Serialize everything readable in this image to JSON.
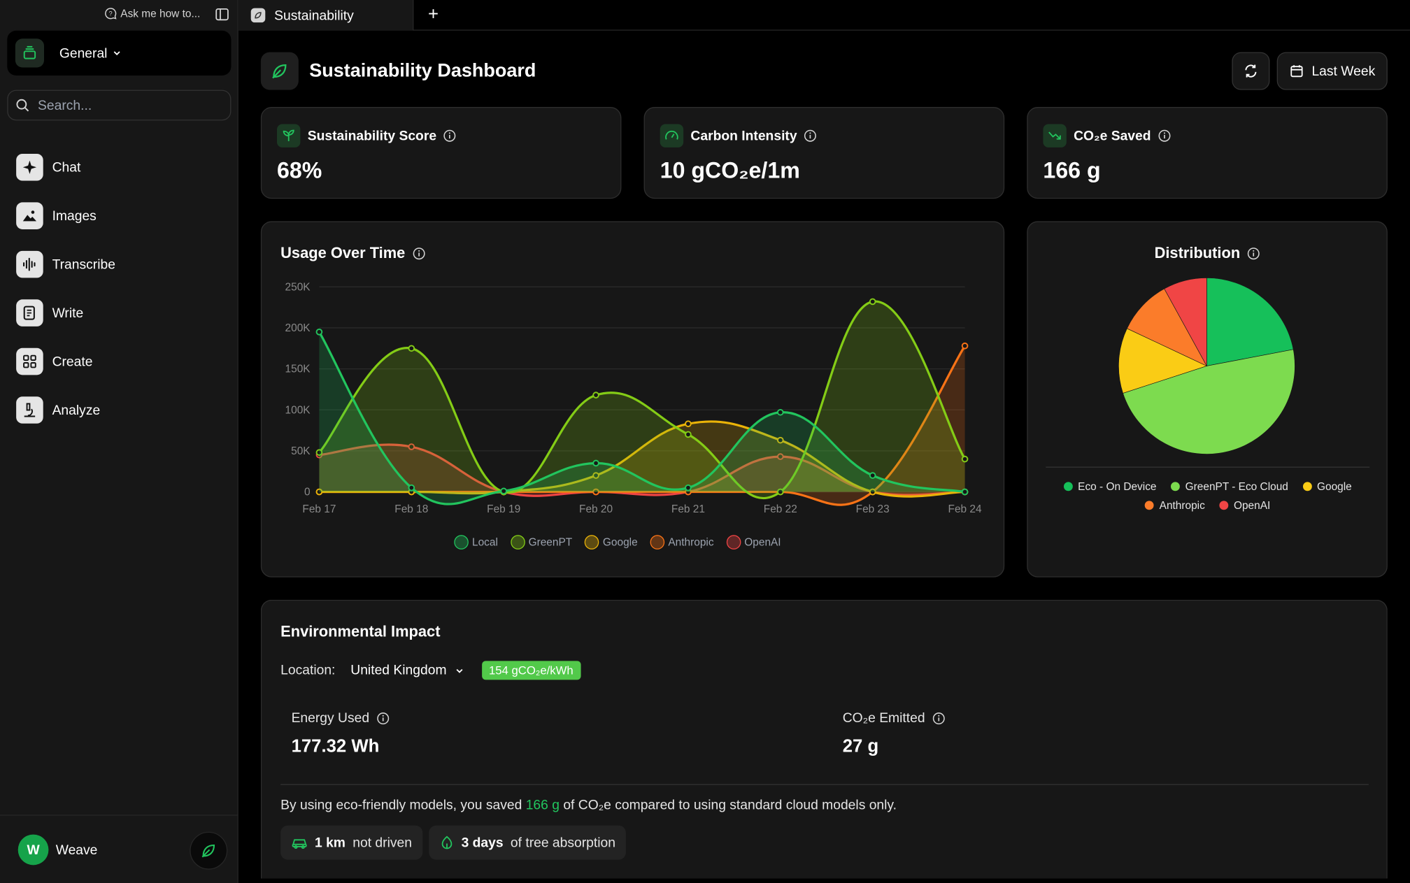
{
  "sidebar": {
    "ask_label": "Ask me how to...",
    "workspace": "General",
    "search_placeholder": "Search...",
    "nav": [
      {
        "label": "Chat",
        "icon": "sparkle-icon"
      },
      {
        "label": "Images",
        "icon": "image-icon"
      },
      {
        "label": "Transcribe",
        "icon": "waveform-icon"
      },
      {
        "label": "Write",
        "icon": "document-icon"
      },
      {
        "label": "Create",
        "icon": "grid-icon"
      },
      {
        "label": "Analyze",
        "icon": "microscope-icon"
      }
    ],
    "user": {
      "initial": "W",
      "name": "Weave"
    }
  },
  "tabs": {
    "active": "Sustainability",
    "add_label": "+"
  },
  "header": {
    "title": "Sustainability Dashboard",
    "range_label": "Last Week"
  },
  "stats": [
    {
      "label": "Sustainability Score",
      "value": "68%",
      "icon": "seedling-icon"
    },
    {
      "label": "Carbon Intensity",
      "value": "10 gCO₂e/1m",
      "icon": "gauge-icon"
    },
    {
      "label": "CO₂e Saved",
      "value": "166 g",
      "icon": "trend-down-icon"
    }
  ],
  "usage": {
    "title": "Usage Over Time"
  },
  "distribution": {
    "title": "Distribution"
  },
  "chart_data": [
    {
      "type": "area",
      "title": "Usage Over Time",
      "x": [
        "Feb 17",
        "Feb 18",
        "Feb 19",
        "Feb 20",
        "Feb 21",
        "Feb 22",
        "Feb 23",
        "Feb 24"
      ],
      "y_ticks": [
        "0",
        "50K",
        "100K",
        "150K",
        "200K",
        "250K"
      ],
      "ylim": [
        0,
        250000
      ],
      "series": [
        {
          "name": "Local",
          "color": "#22c55e",
          "values": [
            195000,
            5000,
            1000,
            35000,
            5000,
            97000,
            20000,
            0
          ]
        },
        {
          "name": "GreenPT",
          "color": "#84cc16",
          "values": [
            48000,
            175000,
            0,
            118000,
            70000,
            0,
            232000,
            40000
          ]
        },
        {
          "name": "Google",
          "color": "#eab308",
          "values": [
            0,
            0,
            0,
            20000,
            83000,
            63000,
            0,
            0
          ]
        },
        {
          "name": "Anthropic",
          "color": "#f97316",
          "values": [
            0,
            0,
            0,
            0,
            0,
            0,
            0,
            178000
          ]
        },
        {
          "name": "OpenAI",
          "color": "#ef4444",
          "values": [
            45000,
            55000,
            0,
            0,
            0,
            43000,
            0,
            0
          ]
        }
      ],
      "legend": "bottom",
      "grid": true
    },
    {
      "type": "pie",
      "title": "Distribution",
      "categories": [
        "Eco - On Device",
        "GreenPT - Eco Cloud",
        "Google",
        "Anthropic",
        "OpenAI"
      ],
      "values": [
        22,
        48,
        12,
        10,
        8
      ],
      "colors": [
        "#16c05a",
        "#7ddb4f",
        "#facc15",
        "#fb7c2a",
        "#f04545"
      ],
      "legend": "bottom"
    }
  ],
  "environment": {
    "title": "Environmental Impact",
    "location_label": "Location:",
    "location": "United Kingdom",
    "intensity_badge": "154 gCO₂e/kWh",
    "energy_label": "Energy Used",
    "energy_value": "177.32 Wh",
    "emitted_label": "CO₂e Emitted",
    "emitted_value": "27 g",
    "saved_prefix": "By using eco-friendly models, you saved",
    "saved_value": "166 g",
    "saved_suffix": "of CO₂e compared to using standard cloud models only.",
    "km_value": "1 km",
    "km_suffix": "not driven",
    "tree_value": "3 days",
    "tree_suffix": "of tree absorption"
  }
}
